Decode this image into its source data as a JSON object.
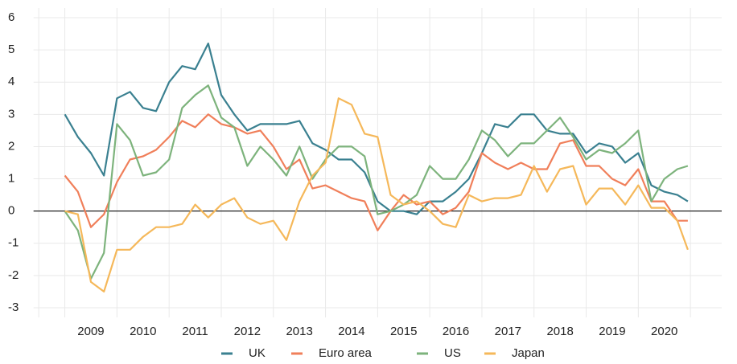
{
  "chart_data": {
    "type": "line",
    "x": [
      2009,
      2009.25,
      2009.5,
      2009.75,
      2010,
      2010.25,
      2010.5,
      2010.75,
      2011,
      2011.25,
      2011.5,
      2011.75,
      2012,
      2012.25,
      2012.5,
      2012.75,
      2013,
      2013.25,
      2013.5,
      2013.75,
      2014,
      2014.25,
      2014.5,
      2014.75,
      2015,
      2015.25,
      2015.5,
      2015.75,
      2016,
      2016.25,
      2016.5,
      2016.75,
      2017,
      2017.25,
      2017.5,
      2017.75,
      2018,
      2018.25,
      2018.5,
      2018.75,
      2019,
      2019.25,
      2019.5,
      2019.75,
      2020,
      2020.25,
      2020.5,
      2020.75,
      2020.95
    ],
    "series": [
      {
        "name": "UK",
        "color": "#3a8090",
        "values": [
          3.0,
          2.3,
          1.8,
          1.1,
          3.5,
          3.7,
          3.2,
          3.1,
          4.0,
          4.5,
          4.4,
          5.2,
          3.6,
          3.0,
          2.5,
          2.7,
          2.7,
          2.7,
          2.8,
          2.1,
          1.9,
          1.6,
          1.6,
          1.2,
          0.3,
          0.0,
          0.0,
          -0.1,
          0.3,
          0.3,
          0.6,
          1.0,
          1.8,
          2.7,
          2.6,
          3.0,
          3.0,
          2.5,
          2.4,
          2.4,
          1.8,
          2.1,
          2.0,
          1.5,
          1.8,
          0.8,
          0.6,
          0.5,
          0.3
        ]
      },
      {
        "name": "Euro area",
        "color": "#f07f5a",
        "values": [
          1.1,
          0.6,
          -0.5,
          -0.1,
          0.9,
          1.6,
          1.7,
          1.9,
          2.3,
          2.8,
          2.6,
          3.0,
          2.7,
          2.6,
          2.4,
          2.5,
          2.0,
          1.3,
          1.6,
          0.7,
          0.8,
          0.6,
          0.4,
          0.3,
          -0.6,
          0.0,
          0.5,
          0.2,
          0.3,
          -0.1,
          0.1,
          0.6,
          1.8,
          1.5,
          1.3,
          1.5,
          1.3,
          1.3,
          2.1,
          2.2,
          1.4,
          1.4,
          1.0,
          0.8,
          1.3,
          0.3,
          0.3,
          -0.3,
          -0.3
        ]
      },
      {
        "name": "US",
        "color": "#7db37c",
        "values": [
          0.0,
          -0.6,
          -2.1,
          -1.3,
          2.7,
          2.2,
          1.1,
          1.2,
          1.6,
          3.2,
          3.6,
          3.9,
          2.9,
          2.6,
          1.4,
          2.0,
          1.6,
          1.1,
          2.0,
          1.0,
          1.6,
          2.0,
          2.0,
          1.7,
          -0.1,
          0.0,
          0.2,
          0.5,
          1.4,
          1.0,
          1.0,
          1.6,
          2.5,
          2.2,
          1.7,
          2.1,
          2.1,
          2.5,
          2.9,
          2.3,
          1.6,
          1.9,
          1.8,
          2.1,
          2.5,
          0.3,
          1.0,
          1.3,
          1.4
        ]
      },
      {
        "name": "Japan",
        "color": "#f5b85a",
        "values": [
          0.0,
          -0.1,
          -2.2,
          -2.5,
          -1.2,
          -1.2,
          -0.8,
          -0.5,
          -0.5,
          -0.4,
          0.2,
          -0.2,
          0.2,
          0.4,
          -0.2,
          -0.4,
          -0.3,
          -0.9,
          0.3,
          1.1,
          1.5,
          3.5,
          3.3,
          2.4,
          2.3,
          0.5,
          0.2,
          0.3,
          0.0,
          -0.4,
          -0.5,
          0.5,
          0.3,
          0.4,
          0.4,
          0.5,
          1.4,
          0.6,
          1.3,
          1.4,
          0.2,
          0.7,
          0.7,
          0.2,
          0.8,
          0.1,
          0.1,
          -0.3,
          -1.2
        ]
      }
    ],
    "xlim": [
      2008.4,
      2021.6
    ],
    "xticks": [
      {
        "value": 2009.5,
        "label": "2009"
      },
      {
        "value": 2010.5,
        "label": "2010"
      },
      {
        "value": 2011.5,
        "label": "2011"
      },
      {
        "value": 2012.5,
        "label": "2012"
      },
      {
        "value": 2013.5,
        "label": "2013"
      },
      {
        "value": 2014.5,
        "label": "2014"
      },
      {
        "value": 2015.5,
        "label": "2015"
      },
      {
        "value": 2016.5,
        "label": "2016"
      },
      {
        "value": 2017.5,
        "label": "2017"
      },
      {
        "value": 2018.5,
        "label": "2018"
      },
      {
        "value": 2019.5,
        "label": "2019"
      },
      {
        "value": 2020.5,
        "label": "2020"
      }
    ],
    "ylim": [
      -3.3,
      6.3
    ],
    "yticks": [
      -3,
      -2,
      -1,
      0,
      1,
      2,
      3,
      4,
      5,
      6
    ],
    "grid": true,
    "legend": "bottom"
  }
}
